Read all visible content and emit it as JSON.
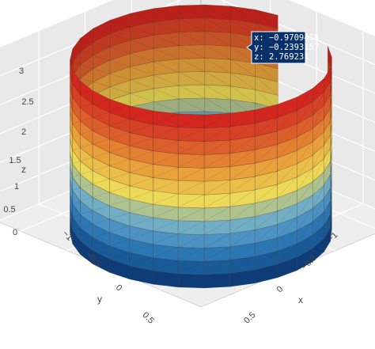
{
  "chart_data": {
    "type": "mesh3d-surface",
    "shape": "open cylinder wall (gap on one side)",
    "colorscale": [
      "#08306b",
      "#2171b5",
      "#6baed6",
      "#f2e05a",
      "#f0a23a",
      "#e0552a",
      "#d7191c"
    ],
    "colorscale_label": "colored by z (low = blue, high = red)",
    "radius": 1,
    "z_range": [
      0,
      3
    ],
    "x_ticks": [
      "−1",
      "−0.5",
      "0",
      "0.5"
    ],
    "y_ticks": [
      "−1",
      "−0.5",
      "0",
      "0.5"
    ],
    "z_ticks": [
      "0",
      "0.5",
      "1",
      "1.5",
      "2",
      "2.5",
      "3"
    ],
    "xlabel": "x",
    "ylabel": "y",
    "zlabel": "z",
    "hover": {
      "x_text": "x: −0.9709418",
      "y_text": "y: −0.2393157",
      "z_text": "z: 2.769231",
      "color": "#08306b"
    },
    "grid": true
  }
}
